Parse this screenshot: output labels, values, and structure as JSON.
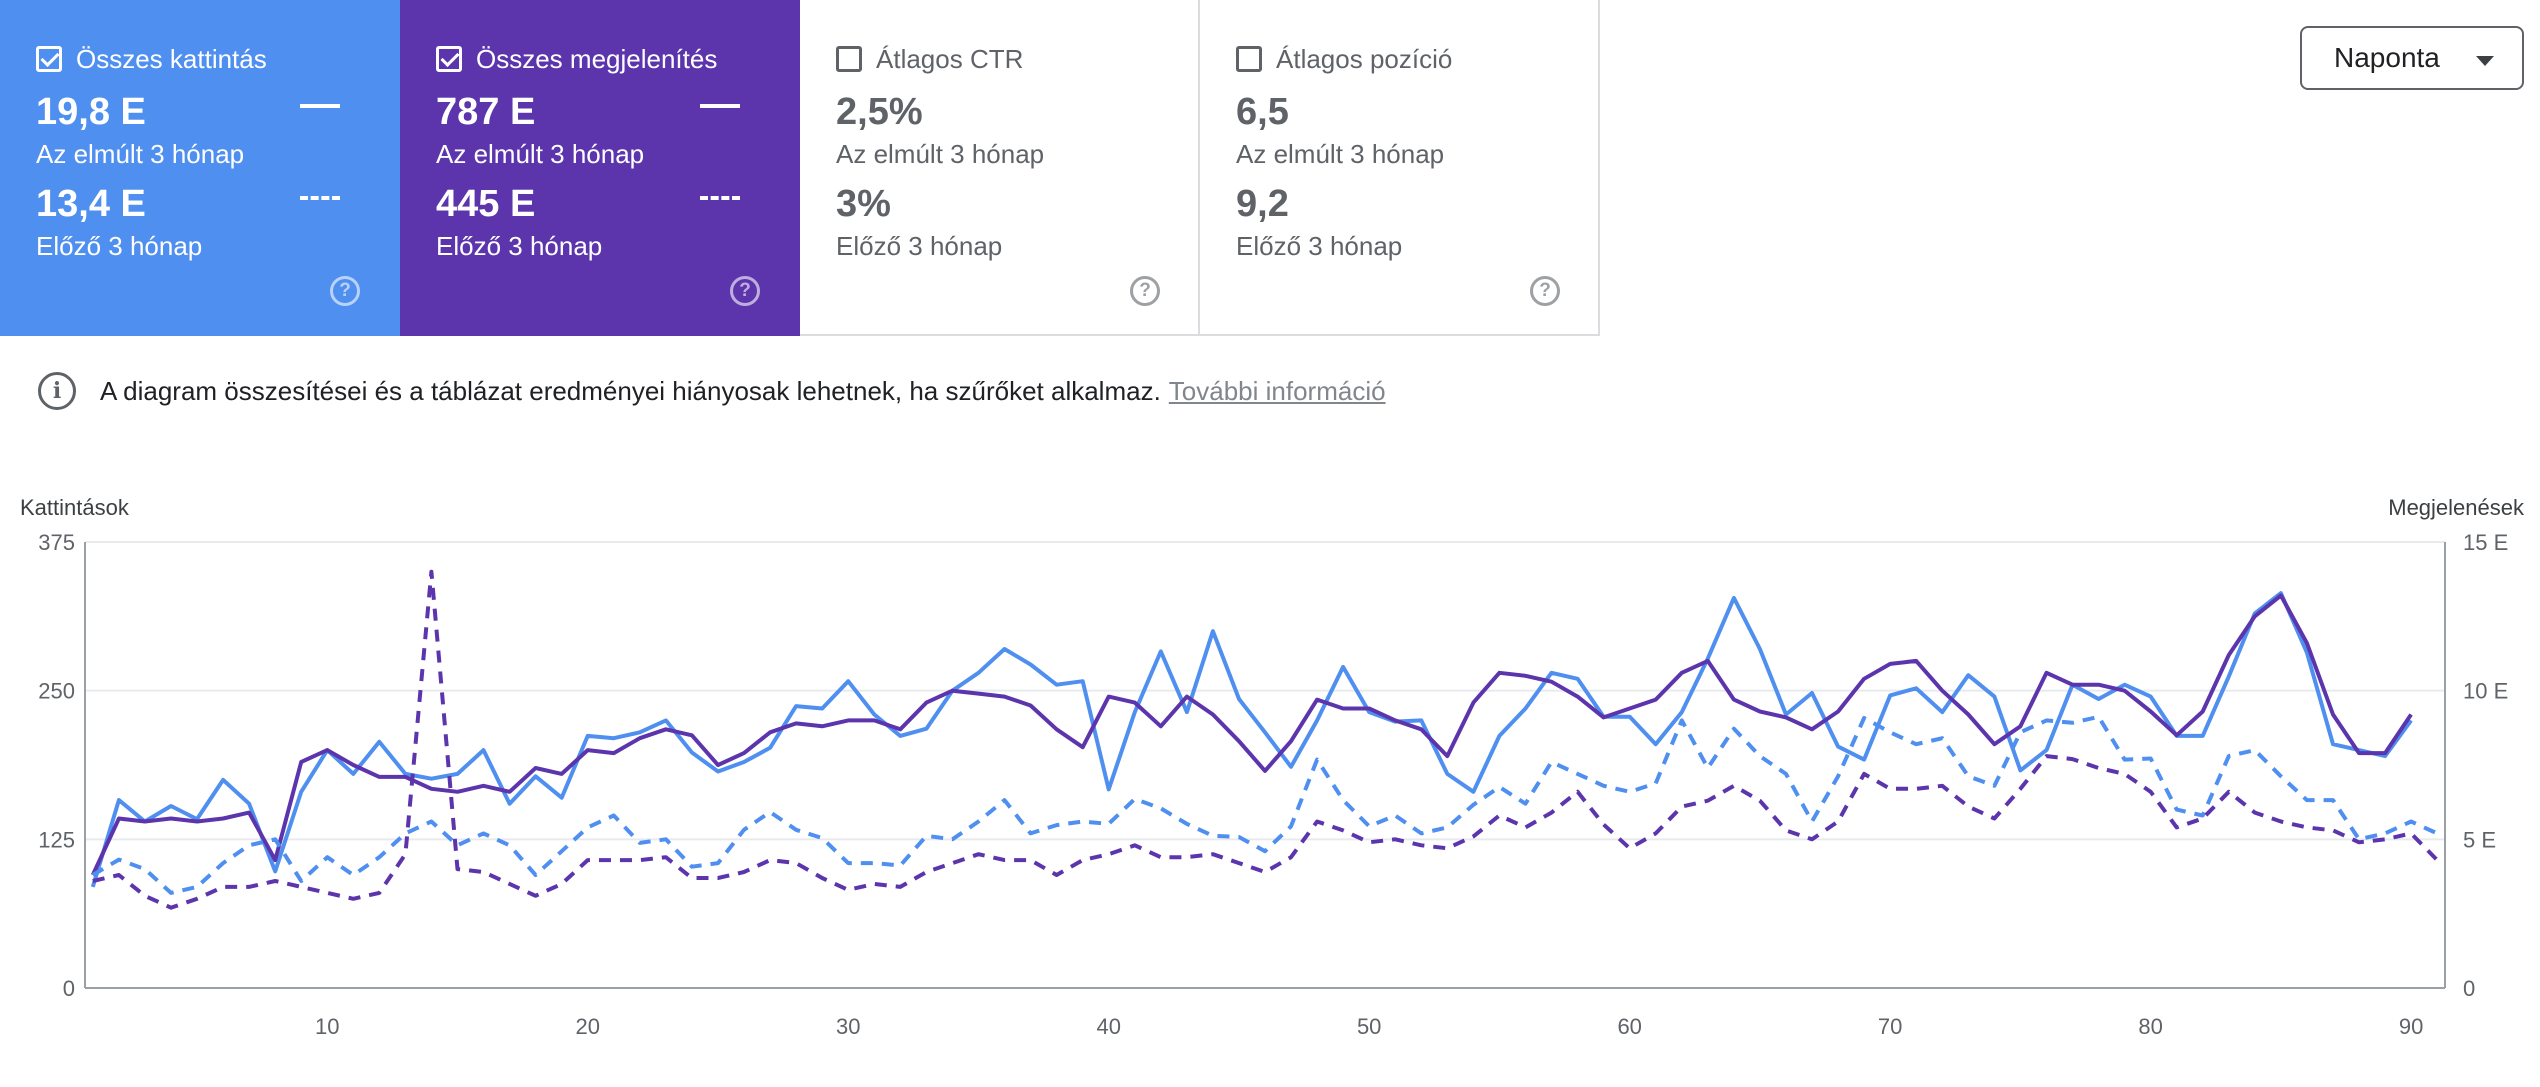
{
  "metrics": {
    "clicks": {
      "title": "Összes kattintás",
      "value": "19,8 E",
      "value_label": "Az elmúlt 3 hónap",
      "prev_value": "13,4 E",
      "prev_label": "Előző 3 hónap",
      "checked": true,
      "color": "#4f8ff0"
    },
    "impressions": {
      "title": "Összes megjelenítés",
      "value": "787 E",
      "value_label": "Az elmúlt 3 hónap",
      "prev_value": "445 E",
      "prev_label": "Előző 3 hónap",
      "checked": true,
      "color": "#5c35ad"
    },
    "ctr": {
      "title": "Átlagos CTR",
      "value": "2,5%",
      "value_label": "Az elmúlt 3 hónap",
      "prev_value": "3%",
      "prev_label": "Előző 3 hónap",
      "checked": false
    },
    "position": {
      "title": "Átlagos pozíció",
      "value": "6,5",
      "value_label": "Az elmúlt 3 hónap",
      "prev_value": "9,2",
      "prev_label": "Előző 3 hónap",
      "checked": false
    }
  },
  "view_select": {
    "value": "Naponta"
  },
  "info": {
    "text": "A diagram összesítései és a táblázat eredményei hiányosak lehetnek, ha szűrőket alkalmaz.",
    "link": "További információ"
  },
  "chart_data": {
    "type": "line",
    "xlabel": "",
    "y_left_label": "Kattintások",
    "y_right_label": "Megjelenések",
    "y_left_ticks": [
      "0",
      "125",
      "250",
      "375"
    ],
    "y_right_ticks": [
      "0",
      "5 E",
      "10 E",
      "15 E"
    ],
    "x_ticks": [
      10,
      20,
      30,
      40,
      50,
      60,
      70,
      80,
      90
    ],
    "x_range": [
      1,
      91
    ],
    "y_left_range": [
      0,
      375
    ],
    "y_right_range": [
      0,
      15000
    ],
    "grid": true,
    "series": [
      {
        "name": "Összes kattintás",
        "axis": "left",
        "style": "solid",
        "color": "#4f8ff0",
        "x": [
          1,
          2,
          3,
          4,
          5,
          6,
          7,
          8,
          9,
          10,
          11,
          12,
          13,
          14,
          15,
          16,
          17,
          18,
          19,
          20,
          21,
          22,
          23,
          24,
          25,
          26,
          27,
          28,
          29,
          30,
          31,
          32,
          33,
          34,
          35,
          36,
          37,
          38,
          39,
          40,
          41,
          42,
          43,
          44,
          45,
          46,
          47,
          48,
          49,
          50,
          51,
          52,
          53,
          54,
          55,
          56,
          57,
          58,
          59,
          60,
          61,
          62,
          63,
          64,
          65,
          66,
          67,
          68,
          69,
          70,
          71,
          72,
          73,
          74,
          75,
          76,
          77,
          78,
          79,
          80,
          81,
          82,
          83,
          84,
          85,
          86,
          87,
          88,
          89,
          90
        ],
        "values": [
          85,
          158,
          140,
          153,
          142,
          175,
          155,
          98,
          165,
          200,
          180,
          207,
          180,
          176,
          180,
          200,
          155,
          178,
          160,
          212,
          210,
          215,
          225,
          198,
          182,
          190,
          202,
          237,
          235,
          258,
          230,
          212,
          218,
          250,
          265,
          285,
          272,
          255,
          258,
          167,
          232,
          283,
          232,
          300,
          243,
          215,
          186,
          225,
          270,
          232,
          224,
          225,
          180,
          165,
          212,
          235,
          265,
          260,
          228,
          228,
          205,
          232,
          277,
          328,
          285,
          230,
          248,
          203,
          192,
          246,
          252,
          232,
          263,
          245,
          183,
          200,
          255,
          243,
          255,
          245,
          212,
          212,
          262,
          315,
          332,
          282,
          205,
          200,
          195,
          225
        ]
      },
      {
        "name": "Összes megjelenítés",
        "axis": "right",
        "style": "solid",
        "color": "#5c35ad",
        "x": [
          1,
          2,
          3,
          4,
          5,
          6,
          7,
          8,
          9,
          10,
          11,
          12,
          13,
          14,
          15,
          16,
          17,
          18,
          19,
          20,
          21,
          22,
          23,
          24,
          25,
          26,
          27,
          28,
          29,
          30,
          31,
          32,
          33,
          34,
          35,
          36,
          37,
          38,
          39,
          40,
          41,
          42,
          43,
          44,
          45,
          46,
          47,
          48,
          49,
          50,
          51,
          52,
          53,
          54,
          55,
          56,
          57,
          58,
          59,
          60,
          61,
          62,
          63,
          64,
          65,
          66,
          67,
          68,
          69,
          70,
          71,
          72,
          73,
          74,
          75,
          76,
          77,
          78,
          79,
          80,
          81,
          82,
          83,
          84,
          85,
          86,
          87,
          88,
          89,
          90
        ],
        "values": [
          3800,
          5700,
          5600,
          5700,
          5600,
          5700,
          5900,
          4300,
          7600,
          8000,
          7500,
          7100,
          7100,
          6700,
          6600,
          6800,
          6600,
          7400,
          7200,
          8000,
          7900,
          8400,
          8700,
          8500,
          7500,
          7900,
          8600,
          8900,
          8800,
          9000,
          9000,
          8700,
          9600,
          10000,
          9900,
          9800,
          9500,
          8700,
          8100,
          9800,
          9600,
          8800,
          9800,
          9200,
          8300,
          7300,
          8300,
          9700,
          9400,
          9400,
          9000,
          8700,
          7800,
          9600,
          10600,
          10500,
          10300,
          9800,
          9100,
          9400,
          9700,
          10600,
          11000,
          9700,
          9300,
          9100,
          8700,
          9300,
          10400,
          10900,
          11000,
          10000,
          9200,
          8200,
          8800,
          10600,
          10200,
          10200,
          10000,
          9300,
          8500,
          9300,
          11200,
          12500,
          13200,
          11600,
          9200,
          7900,
          7900,
          9200
        ]
      },
      {
        "name": "Összes kattintás (Előző 3 hónap)",
        "axis": "left",
        "style": "dashed",
        "color": "#4f8ff0",
        "x": [
          1,
          2,
          3,
          4,
          5,
          6,
          7,
          8,
          9,
          10,
          11,
          12,
          13,
          14,
          15,
          16,
          17,
          18,
          19,
          20,
          21,
          22,
          23,
          24,
          25,
          26,
          27,
          28,
          29,
          30,
          31,
          32,
          33,
          34,
          35,
          36,
          37,
          38,
          39,
          40,
          41,
          42,
          43,
          44,
          45,
          46,
          47,
          48,
          49,
          50,
          51,
          52,
          53,
          54,
          55,
          56,
          57,
          58,
          59,
          60,
          61,
          62,
          63,
          64,
          65,
          66,
          67,
          68,
          69,
          70,
          71,
          72,
          73,
          74,
          75,
          76,
          77,
          78,
          79,
          80,
          81,
          82,
          83,
          84,
          85,
          86,
          87,
          88,
          89,
          90,
          91
        ],
        "values": [
          95,
          108,
          100,
          80,
          85,
          105,
          120,
          125,
          90,
          110,
          95,
          110,
          130,
          140,
          120,
          130,
          120,
          95,
          115,
          135,
          145,
          122,
          125,
          102,
          105,
          133,
          148,
          133,
          126,
          105,
          105,
          103,
          128,
          125,
          140,
          158,
          130,
          137,
          140,
          138,
          159,
          151,
          138,
          128,
          127,
          115,
          136,
          192,
          158,
          136,
          145,
          130,
          135,
          154,
          169,
          155,
          190,
          180,
          170,
          165,
          172,
          225,
          185,
          218,
          195,
          180,
          140,
          178,
          227,
          215,
          205,
          210,
          178,
          170,
          215,
          225,
          223,
          228,
          192,
          193,
          150,
          145,
          195,
          200,
          178,
          158,
          158,
          125,
          130,
          140,
          130
        ]
      },
      {
        "name": "Összes megjelenítés (Előző 3 hónap)",
        "axis": "right",
        "style": "dashed",
        "color": "#5c35ad",
        "x": [
          1,
          2,
          3,
          4,
          5,
          6,
          7,
          8,
          9,
          10,
          11,
          12,
          13,
          14,
          15,
          16,
          17,
          18,
          19,
          20,
          21,
          22,
          23,
          24,
          25,
          26,
          27,
          28,
          29,
          30,
          31,
          32,
          33,
          34,
          35,
          36,
          37,
          38,
          39,
          40,
          41,
          42,
          43,
          44,
          45,
          46,
          47,
          48,
          49,
          50,
          51,
          52,
          53,
          54,
          55,
          56,
          57,
          58,
          59,
          60,
          61,
          62,
          63,
          64,
          65,
          66,
          67,
          68,
          69,
          70,
          71,
          72,
          73,
          74,
          75,
          76,
          77,
          78,
          79,
          80,
          81,
          82,
          83,
          84,
          85,
          86,
          87,
          88,
          89,
          90,
          91
        ],
        "values": [
          3600,
          3800,
          3100,
          2700,
          3000,
          3400,
          3400,
          3600,
          3400,
          3200,
          3000,
          3200,
          4500,
          14000,
          4000,
          3900,
          3500,
          3100,
          3500,
          4300,
          4300,
          4300,
          4400,
          3700,
          3700,
          3900,
          4300,
          4200,
          3700,
          3300,
          3500,
          3400,
          3900,
          4200,
          4500,
          4300,
          4300,
          3800,
          4300,
          4500,
          4800,
          4400,
          4400,
          4500,
          4200,
          3900,
          4400,
          5600,
          5300,
          4900,
          5000,
          4800,
          4700,
          5100,
          5800,
          5400,
          5900,
          6600,
          5500,
          4700,
          5200,
          6100,
          6300,
          6800,
          6300,
          5300,
          5000,
          5600,
          7200,
          6700,
          6700,
          6800,
          6100,
          5700,
          6700,
          7800,
          7700,
          7400,
          7200,
          6600,
          5400,
          5700,
          6600,
          5900,
          5600,
          5400,
          5300,
          4900,
          5000,
          5200,
          4300
        ]
      }
    ]
  }
}
